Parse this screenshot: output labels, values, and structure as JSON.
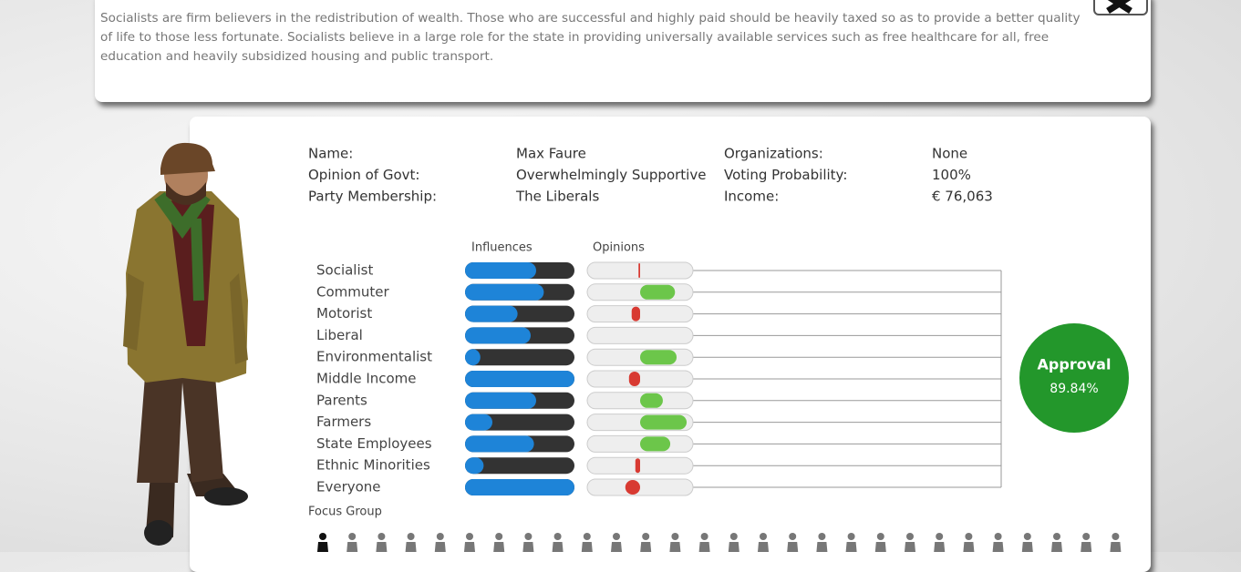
{
  "description": "Socialists are firm believers in the redistribution of wealth. Those who are successful and highly paid should be heavily taxed so as to provide a better quality of life to those less fortunate. Socialists believe in a large role for the state in providing universally available services such as free healthcare for all, free education and heavily subsidized housing and public transport.",
  "profile": [
    {
      "label": "Name:",
      "value": "Max Faure"
    },
    {
      "label": "Opinion of Govt:",
      "value": "Overwhelmingly Supportive"
    },
    {
      "label": "Party Membership:",
      "value": "The Liberals"
    },
    {
      "label": "Organizations:",
      "value": "None"
    },
    {
      "label": "Voting Probability:",
      "value": "100%"
    },
    {
      "label": "Income:",
      "value": "€ 76,063"
    }
  ],
  "influences_header": "Influences",
  "opinions_header": "Opinions",
  "groups": [
    {
      "name": "Socialist",
      "influence": 0.65,
      "opinion": -0.03
    },
    {
      "name": "Commuter",
      "influence": 0.72,
      "opinion": 0.66
    },
    {
      "name": "Motorist",
      "influence": 0.48,
      "opinion": -0.16
    },
    {
      "name": "Liberal",
      "influence": 0.6,
      "opinion": 0
    },
    {
      "name": "Environmentalist",
      "influence": 0.14,
      "opinion": 0.69
    },
    {
      "name": "Middle Income",
      "influence": 1.0,
      "opinion": -0.21
    },
    {
      "name": "Parents",
      "influence": 0.65,
      "opinion": 0.43
    },
    {
      "name": "Farmers",
      "influence": 0.25,
      "opinion": 0.88
    },
    {
      "name": "State Employees",
      "influence": 0.63,
      "opinion": 0.57
    },
    {
      "name": "Ethnic Minorities",
      "influence": 0.17,
      "opinion": -0.09
    },
    {
      "name": "Everyone",
      "influence": 1.0,
      "opinion": -0.28
    }
  ],
  "approval": {
    "label": "Approval",
    "value": "89.84%"
  },
  "focus_group_label": "Focus Group"
}
